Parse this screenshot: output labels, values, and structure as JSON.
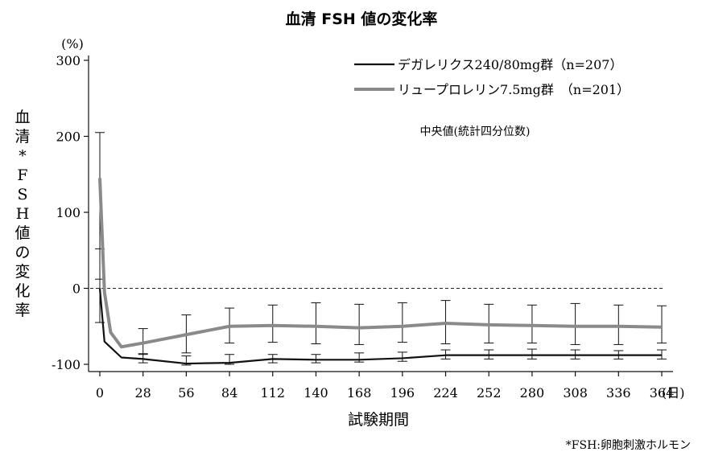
{
  "chart_data": {
    "type": "line",
    "title": "血清 FSH 値の変化率",
    "ylabel": "血清*FSH値の変化率",
    "yunit": "(%)",
    "xlabel": "試験期間",
    "xunit": "(日)",
    "ylim": [
      -100,
      300
    ],
    "yticks": [
      300,
      200,
      100,
      0,
      -100
    ],
    "xticks": [
      0,
      28,
      56,
      84,
      112,
      140,
      168,
      196,
      224,
      252,
      280,
      308,
      336,
      364
    ],
    "xlim": [
      0,
      364
    ],
    "reference_line": 0,
    "note": "中央値(統計四分位数)",
    "footnote": "*FSH:卵胞刺激ホルモン",
    "legend_position": "top-right",
    "series": [
      {
        "name": "デガレリクス240/80mg群（n=207）",
        "color": "#111111",
        "x": [
          0,
          3,
          14,
          28,
          56,
          84,
          112,
          140,
          168,
          196,
          224,
          252,
          280,
          308,
          336,
          364
        ],
        "y": [
          0,
          -70,
          -91,
          -93,
          -99,
          -98,
          -93,
          -94,
          -94,
          -92,
          -88,
          -88,
          -88,
          -88,
          -88,
          -88
        ],
        "err_low": [
          -45,
          null,
          null,
          -98,
          -101,
          -100,
          -98,
          -98,
          -97,
          -96,
          -93,
          -93,
          -93,
          -93,
          -93,
          -93
        ],
        "err_high": [
          52,
          null,
          null,
          -86,
          -89,
          -87,
          -87,
          -87,
          -85,
          -84,
          -81,
          -81,
          -80,
          -81,
          -82,
          -81
        ],
        "cap_x": [
          0,
          28,
          56,
          84,
          112,
          140,
          168,
          196,
          224,
          252,
          280,
          308,
          336,
          364
        ]
      },
      {
        "name": "リュープロレリン7.5mg群　（n=201）",
        "color": "#8a8a8a",
        "x": [
          0,
          3,
          7,
          14,
          28,
          56,
          84,
          112,
          140,
          168,
          196,
          224,
          252,
          280,
          308,
          336,
          364
        ],
        "y": [
          145,
          -5,
          -58,
          -77,
          -72,
          -61,
          -50,
          -49,
          -50,
          -52,
          -50,
          -46,
          -48,
          -49,
          -50,
          -50,
          -51
        ],
        "err_low": [
          12,
          null,
          null,
          null,
          -87,
          -85,
          -72,
          -71,
          -73,
          -74,
          -71,
          -73,
          -72,
          -72,
          -74,
          -74,
          -72
        ],
        "err_high": [
          205,
          null,
          null,
          null,
          -53,
          -35,
          -26,
          -22,
          -19,
          -21,
          -19,
          -16,
          -21,
          -22,
          -20,
          -22,
          -23
        ],
        "cap_x": [
          0,
          28,
          56,
          84,
          112,
          140,
          168,
          196,
          224,
          252,
          280,
          308,
          336,
          364
        ]
      }
    ]
  }
}
